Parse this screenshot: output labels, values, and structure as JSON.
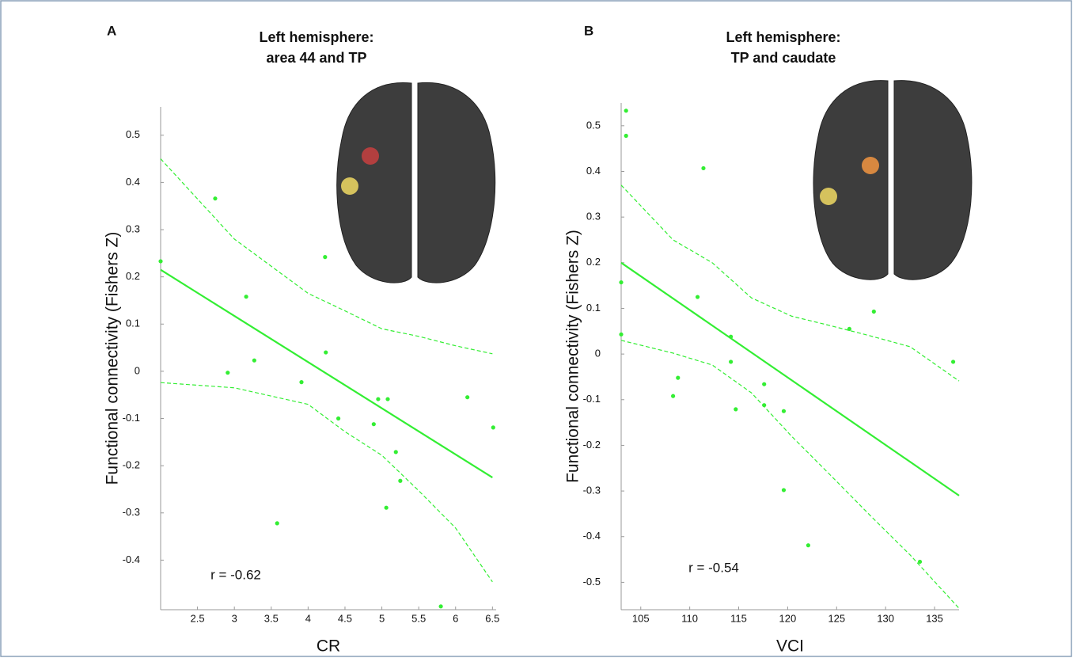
{
  "chart_data": [
    {
      "type": "scatter",
      "panel_label": "A",
      "title": [
        "Left hemisphere:",
        "area 44 and TP"
      ],
      "x_label": "CR",
      "y_label": "Functional connectivity (Fishers Z)",
      "annotation": "r = -0.62",
      "color": "#33ee33",
      "x": [
        2.0,
        2.74,
        3.16,
        2.91,
        3.27,
        4.23,
        4.24,
        3.91,
        4.41,
        3.58,
        4.89,
        4.95,
        5.08,
        5.19,
        5.25,
        5.06,
        5.8,
        6.16,
        6.51
      ],
      "values": [
        0.233,
        0.366,
        0.158,
        -0.003,
        0.023,
        0.242,
        0.04,
        -0.023,
        -0.1,
        -0.322,
        -0.112,
        -0.059,
        -0.059,
        -0.171,
        -0.232,
        -0.289,
        -0.498,
        -0.055,
        -0.119
      ],
      "fit_line": {
        "x": [
          2,
          6.5
        ],
        "values": [
          0.215,
          -0.225
        ]
      },
      "ci_upper": {
        "x": [
          2,
          3,
          4,
          4.5,
          5,
          5.5,
          6,
          6.5
        ],
        "values": [
          0.45,
          0.28,
          0.165,
          0.128,
          0.09,
          0.074,
          0.054,
          0.037
        ]
      },
      "ci_lower": {
        "x": [
          2,
          3,
          4,
          4.5,
          5,
          5.5,
          6,
          6.5
        ],
        "values": [
          -0.024,
          -0.035,
          -0.07,
          -0.128,
          -0.178,
          -0.253,
          -0.332,
          -0.446
        ]
      },
      "xlim": [
        2,
        6.55
      ],
      "ylim": [
        -0.505,
        0.56
      ],
      "xticks": [
        2.5,
        3,
        3.5,
        4,
        4.5,
        5,
        5.5,
        6,
        6.5
      ],
      "yticks": [
        0.5,
        0.4,
        0.3,
        0.2,
        0.1,
        0,
        -0.1,
        -0.2,
        -0.3,
        -0.4
      ]
    },
    {
      "type": "scatter",
      "panel_label": "B",
      "title": [
        "Left hemisphere:",
        "TP and caudate"
      ],
      "x_label": "VCI",
      "y_label": "Functional connectivity (Fishers Z)",
      "annotation": "r = -0.54",
      "color": "#33ee33",
      "x": [
        103.5,
        103.5,
        103,
        103,
        111.4,
        110.8,
        114.2,
        114.2,
        114.7,
        108.8,
        108.3,
        117.6,
        117.6,
        119.6,
        119.6,
        122.1,
        126.3,
        128.8,
        136.9,
        133.5
      ],
      "values": [
        0.533,
        0.478,
        0.157,
        0.043,
        0.407,
        0.125,
        0.038,
        -0.017,
        -0.121,
        -0.052,
        -0.092,
        -0.066,
        -0.112,
        -0.125,
        -0.298,
        -0.419,
        0.055,
        0.093,
        -0.017,
        -0.455
      ],
      "fit_line": {
        "x": [
          103,
          137.5
        ],
        "values": [
          0.2,
          -0.31
        ]
      },
      "ci_upper": {
        "x": [
          103,
          108.3,
          112.3,
          116.3,
          120.4,
          124.4,
          128.4,
          132.5,
          137.5
        ],
        "values": [
          0.37,
          0.25,
          0.2,
          0.123,
          0.083,
          0.062,
          0.04,
          0.016,
          -0.059
        ]
      },
      "ci_lower": {
        "x": [
          103,
          108.3,
          112.3,
          116.3,
          120.4,
          124.4,
          128.4,
          132.5,
          137.5
        ],
        "values": [
          0.03,
          0.002,
          -0.024,
          -0.085,
          -0.18,
          -0.266,
          -0.353,
          -0.44,
          -0.557
        ]
      },
      "xlim": [
        103,
        137.5
      ],
      "ylim": [
        -0.56,
        0.55
      ],
      "xticks": [
        105,
        110,
        115,
        120,
        125,
        130,
        135
      ],
      "yticks": [
        0.5,
        0.4,
        0.3,
        0.2,
        0.1,
        0,
        -0.1,
        -0.2,
        -0.3,
        -0.4,
        -0.5
      ]
    }
  ]
}
